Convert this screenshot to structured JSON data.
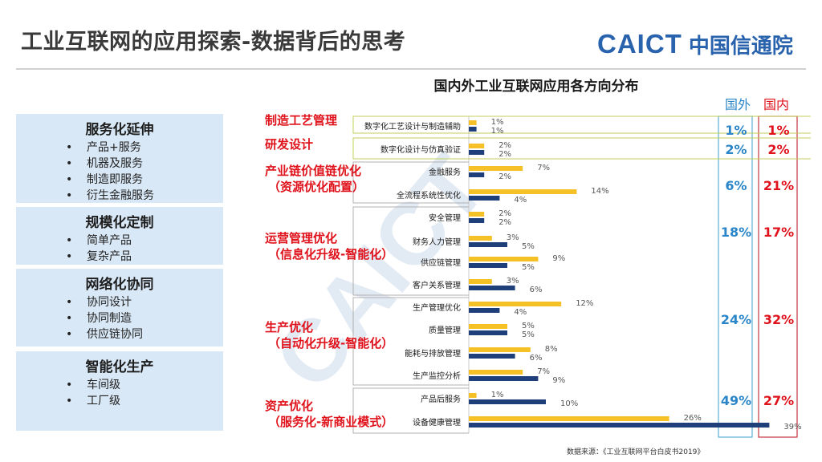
{
  "page": {
    "title": "工业互联网的应用探索-数据背后的思考",
    "logo_en": "CAICT",
    "logo_cn": "中国信通院",
    "source": "数据来源：《工业互联网平台白皮书2019》"
  },
  "categories_panel": [
    {
      "title": "服务化延伸",
      "items": [
        "产品+服务",
        "机器及服务",
        "制造即服务",
        "衍生金融服务"
      ]
    },
    {
      "title": "规模化定制",
      "items": [
        "简单产品",
        "复杂产品"
      ]
    },
    {
      "title": "网络化协同",
      "items": [
        "协同设计",
        "协同制造",
        "供应链协同"
      ]
    },
    {
      "title": "智能化生产",
      "items": [
        "车间级",
        "工厂级"
      ]
    }
  ],
  "colors": {
    "domestic": "#f5c126",
    "foreign": "#1f3f7a",
    "foreign_box": "#5aaed8",
    "domestic_box": "#c0353d",
    "accent_red": "#e0121b",
    "group_outline": "#b0b0b0"
  },
  "chart_data": {
    "type": "bar",
    "title": "国内外工业互联网应用各方向分布",
    "legend": [
      "国外",
      "国内"
    ],
    "series": [
      {
        "name": "国内"
      },
      {
        "name": "国外"
      }
    ],
    "groups": [
      {
        "name": "制造工艺管理",
        "foreign_total": "1%",
        "domestic_total": "1%",
        "items": [
          {
            "label": "数字化工艺设计与制造辅助",
            "domestic": 1,
            "foreign": 1
          }
        ]
      },
      {
        "name": "研发设计",
        "foreign_total": "2%",
        "domestic_total": "2%",
        "items": [
          {
            "label": "数字化设计与仿真验证",
            "domestic": 2,
            "foreign": 2
          }
        ]
      },
      {
        "name": "产业链价值链优化\n（资源优化配置）",
        "foreign_total": "6%",
        "domestic_total": "21%",
        "items": [
          {
            "label": "金融服务",
            "domestic": 7,
            "foreign": 2
          },
          {
            "label": "全流程系统性优化",
            "domestic": 14,
            "foreign": 4
          }
        ]
      },
      {
        "name": "运营管理优化\n（信息化升级-智能化）",
        "foreign_total": "18%",
        "domestic_total": "17%",
        "items": [
          {
            "label": "安全管理",
            "domestic": 2,
            "foreign": 2
          },
          {
            "label": "财务人力管理",
            "domestic": 3,
            "foreign": 5
          },
          {
            "label": "供应链管理",
            "domestic": 9,
            "foreign": 5
          },
          {
            "label": "客户关系管理",
            "domestic": 3,
            "foreign": 6
          }
        ]
      },
      {
        "name": "生产优化\n（自动化升级-智能化）",
        "foreign_total": "24%",
        "domestic_total": "32%",
        "items": [
          {
            "label": "生产管理优化",
            "domestic": 12,
            "foreign": 4
          },
          {
            "label": "质量管理",
            "domestic": 5,
            "foreign": 5
          },
          {
            "label": "能耗与排放管理",
            "domestic": 8,
            "foreign": 6
          },
          {
            "label": "生产监控分析",
            "domestic": 7,
            "foreign": 9
          }
        ]
      },
      {
        "name": "资产优化\n（服务化-新商业模式）",
        "foreign_total": "49%",
        "domestic_total": "27%",
        "items": [
          {
            "label": "产品后服务",
            "domestic": 1,
            "foreign": 10
          },
          {
            "label": "设备健康管理",
            "domestic": 26,
            "foreign": 39
          }
        ]
      }
    ]
  }
}
